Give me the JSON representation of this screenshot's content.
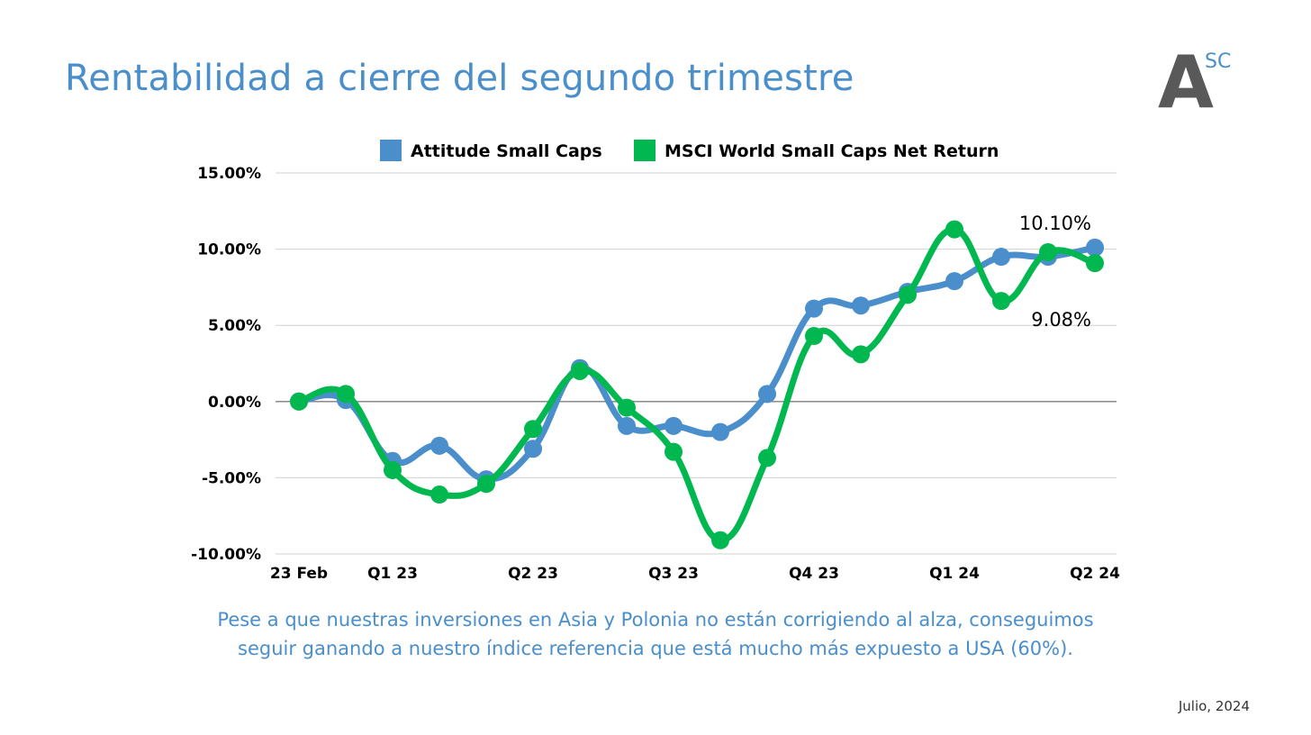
{
  "slide": {
    "title": "Rentabilidad a cierre del segundo trimestre",
    "caption_line1": "Pese a que nuestras inversiones en Asia y Polonia no están corrigiendo al alza, conseguimos",
    "caption_line2": "seguir ganando a nuestro índice referencia que está mucho más expuesto a USA (60%).",
    "date": "Julio, 2024"
  },
  "logo": {
    "main": "A",
    "sup": "SC"
  },
  "colors": {
    "title": "#4a8fcb",
    "series_attitude": "#4a8fcb",
    "series_msci": "#00b84f",
    "grid": "#d0d0d0",
    "zero_line": "#7f7f7f",
    "text": "#000000"
  },
  "chart_data": {
    "type": "line",
    "title": "",
    "xlabel": "",
    "ylabel": "",
    "ylim": [
      -10,
      15
    ],
    "yticks": [
      15,
      10,
      5,
      0,
      -5,
      -10
    ],
    "ytick_labels": [
      "15.00%",
      "10.00%",
      "5.00%",
      "0.00%",
      "-5.00%",
      "-10.00%"
    ],
    "xtick_labels": [
      {
        "index": 0,
        "label": "23 Feb"
      },
      {
        "index": 2,
        "label": "Q1 23"
      },
      {
        "index": 5,
        "label": "Q2 23"
      },
      {
        "index": 8,
        "label": "Q3 23"
      },
      {
        "index": 11,
        "label": "Q4 23"
      },
      {
        "index": 14,
        "label": "Q1 24"
      },
      {
        "index": 17,
        "label": "Q2 24"
      }
    ],
    "grid": true,
    "legend_position": "top",
    "smooth": true,
    "series": [
      {
        "name": "Attitude Small Caps",
        "color": "#4a8fcb",
        "values": [
          0.0,
          0.1,
          -3.9,
          -2.9,
          -5.1,
          -3.1,
          2.2,
          -1.6,
          -1.6,
          -2.0,
          0.5,
          6.1,
          6.3,
          7.2,
          7.9,
          9.5,
          9.5,
          10.1
        ]
      },
      {
        "name": "MSCI World Small Caps Net Return",
        "color": "#00b84f",
        "values": [
          0.0,
          0.5,
          -4.5,
          -6.1,
          -5.4,
          -1.8,
          2.0,
          -0.4,
          -3.3,
          -9.1,
          -3.7,
          4.3,
          3.1,
          7.0,
          11.3,
          6.6,
          9.8,
          9.08
        ]
      }
    ],
    "annotations": [
      {
        "series": 0,
        "index": 17,
        "text": "10.10%",
        "placement": "above"
      },
      {
        "series": 1,
        "index": 17,
        "text": "9.08%",
        "placement": "below"
      }
    ]
  }
}
